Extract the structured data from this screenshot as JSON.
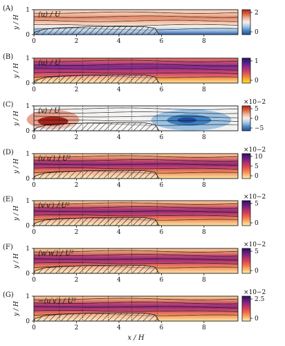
{
  "chart_data": [
    {
      "type": "heatmap",
      "panel": "(A)",
      "title": "⟨u⟩ / U",
      "xlabel": "",
      "ylabel": "y / H",
      "xlim": [
        0,
        9.6
      ],
      "ylim": [
        0,
        1
      ],
      "xticks": [
        "0",
        "2",
        "4",
        "6",
        "8"
      ],
      "yticks": [
        "0",
        "1"
      ],
      "colormap": "diverging red-white-blue",
      "colorbar": {
        "ticks": [
          "2",
          "0"
        ],
        "multiplier": ""
      },
      "probe_lines_x": []
    },
    {
      "type": "heatmap",
      "panel": "(B)",
      "title": "⟨u⟩ / U",
      "xlabel": "",
      "ylabel": "y / H",
      "xlim": [
        0,
        9.6
      ],
      "ylim": [
        0,
        1
      ],
      "xticks": [
        "0",
        "2",
        "4",
        "6",
        "8"
      ],
      "yticks": [
        "0",
        "1"
      ],
      "colormap": "plasma",
      "colorbar": {
        "ticks": [
          "1",
          "0"
        ],
        "multiplier": ""
      },
      "probe_lines_x": [
        1.2,
        2.3,
        3.5,
        4.6,
        5.8
      ]
    },
    {
      "type": "heatmap",
      "panel": "(C)",
      "title": "⟨v⟩ / U",
      "xlabel": "",
      "ylabel": "y / H",
      "xlim": [
        0,
        9.6
      ],
      "ylim": [
        0,
        1
      ],
      "xticks": [
        "0",
        "2",
        "4",
        "6",
        "8"
      ],
      "yticks": [
        "0",
        "1"
      ],
      "colormap": "diverging red-white-blue",
      "colorbar": {
        "ticks": [
          "5",
          "0",
          "−5"
        ],
        "multiplier": "×10−2"
      },
      "probe_lines_x": [
        1.2,
        2.3,
        3.5,
        4.6,
        5.8
      ]
    },
    {
      "type": "heatmap",
      "panel": "(D)",
      "title": "⟨u′u′⟩ / U²",
      "xlabel": "",
      "ylabel": "y / H",
      "xlim": [
        0,
        9.6
      ],
      "ylim": [
        0,
        1
      ],
      "xticks": [
        "0",
        "2",
        "4",
        "6",
        "8"
      ],
      "yticks": [
        "0",
        "1"
      ],
      "colormap": "magma",
      "colorbar": {
        "ticks": [
          "10",
          "5",
          "0"
        ],
        "multiplier": "×10−2"
      },
      "probe_lines_x": [
        1.2,
        2.3,
        3.5,
        4.6,
        5.8
      ]
    },
    {
      "type": "heatmap",
      "panel": "(E)",
      "title": "⟨v′v′⟩ / U²",
      "xlabel": "",
      "ylabel": "y / H",
      "xlim": [
        0,
        9.6
      ],
      "ylim": [
        0,
        1
      ],
      "xticks": [
        "0",
        "2",
        "4",
        "6",
        "8"
      ],
      "yticks": [
        "0",
        "1"
      ],
      "colormap": "magma",
      "colorbar": {
        "ticks": [
          "5",
          "0"
        ],
        "multiplier": "×10−2"
      },
      "probe_lines_x": [
        1.2,
        2.3,
        3.5,
        4.6,
        5.8
      ]
    },
    {
      "type": "heatmap",
      "panel": "(F)",
      "title": "⟨w′w′⟩ / U²",
      "xlabel": "",
      "ylabel": "y / H",
      "xlim": [
        0,
        9.6
      ],
      "ylim": [
        0,
        1
      ],
      "xticks": [
        "0",
        "2",
        "4",
        "6",
        "8"
      ],
      "yticks": [
        "0",
        "1"
      ],
      "colormap": "magma",
      "colorbar": {
        "ticks": [
          "5",
          "0"
        ],
        "multiplier": "×10−2"
      },
      "probe_lines_x": [
        1.2,
        2.3,
        3.5,
        4.6,
        5.8
      ]
    },
    {
      "type": "heatmap",
      "panel": "(G)",
      "title": "−⟨u′v′⟩ / U²",
      "xlabel": "x / H",
      "ylabel": "y / H",
      "xlim": [
        0,
        9.6
      ],
      "ylim": [
        0,
        1
      ],
      "xticks": [
        "0",
        "2",
        "4",
        "6",
        "8"
      ],
      "yticks": [
        "0",
        "1"
      ],
      "colormap": "magma",
      "colorbar": {
        "ticks": [
          "2.5",
          "0"
        ],
        "multiplier": "×10−2"
      },
      "probe_lines_x": [
        1.2,
        2.3,
        3.5,
        4.6,
        5.8
      ]
    }
  ]
}
